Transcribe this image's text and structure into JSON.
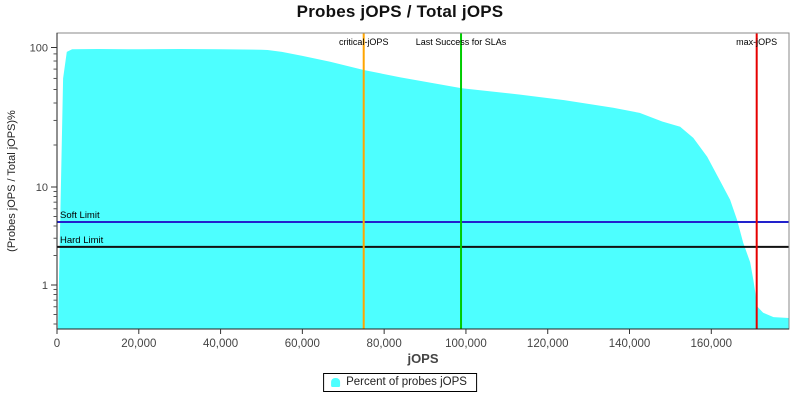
{
  "title": "Probes jOPS / Total jOPS",
  "legend": {
    "label": "Percent of probes jOPS"
  },
  "chart_data": {
    "type": "area",
    "title": "Probes jOPS / Total jOPS",
    "xlabel": "jOPS",
    "ylabel": "(Probes jOPS / Total jOPS)%",
    "grid": false,
    "legend_position": "bottom",
    "x_axis": {
      "min": 0,
      "max": 179000,
      "ticks": [
        0,
        20000,
        40000,
        60000,
        80000,
        100000,
        120000,
        140000,
        160000
      ],
      "tick_labels": [
        "0",
        "20,000",
        "40,000",
        "60,000",
        "80,000",
        "100,000",
        "120,000",
        "140,000",
        "160,000"
      ]
    },
    "y_axis": {
      "scale": "log",
      "min": 0.35,
      "max": 130,
      "major_ticks": [
        100,
        10,
        1
      ],
      "major_tick_labels": [
        "100",
        "10",
        "1"
      ],
      "minor_ticks": [
        90,
        80,
        70,
        60,
        50,
        40,
        30,
        20,
        9,
        8,
        7,
        6,
        5,
        4,
        3,
        2,
        0.9,
        0.8,
        0.7,
        0.6,
        0.5,
        0.4
      ]
    },
    "series": [
      {
        "name": "Percent of probes jOPS",
        "color": "#4DFFFF",
        "points": [
          [
            250,
            0.35
          ],
          [
            900,
            8
          ],
          [
            1500,
            60
          ],
          [
            2400,
            93
          ],
          [
            3700,
            97
          ],
          [
            10000,
            97.5
          ],
          [
            20000,
            97
          ],
          [
            30000,
            97.5
          ],
          [
            40000,
            97
          ],
          [
            50000,
            96.5
          ],
          [
            51500,
            96
          ],
          [
            55000,
            93
          ],
          [
            60000,
            87
          ],
          [
            66800,
            79
          ],
          [
            75000,
            69
          ],
          [
            84000,
            61
          ],
          [
            99000,
            51
          ],
          [
            113000,
            46
          ],
          [
            124000,
            42
          ],
          [
            136000,
            37
          ],
          [
            142500,
            34
          ],
          [
            148000,
            29.5
          ],
          [
            152400,
            27
          ],
          [
            155600,
            22.5
          ],
          [
            159000,
            16.5
          ],
          [
            162200,
            11
          ],
          [
            164600,
            7.4
          ],
          [
            166300,
            4.6
          ],
          [
            167800,
            2.7
          ],
          [
            169500,
            1.7
          ],
          [
            170300,
            1.12
          ],
          [
            171300,
            0.6
          ],
          [
            172700,
            0.52
          ],
          [
            175200,
            0.47
          ],
          [
            179000,
            0.46
          ]
        ]
      }
    ],
    "vertical_markers": [
      {
        "label": "critical-jOPS",
        "color": "#FFA500",
        "x": 75000
      },
      {
        "label": "Last Success for SLAs",
        "color": "#00CC00",
        "x": 98800
      },
      {
        "label": "max-jOPS",
        "color": "#E60000",
        "x": 171100
      }
    ],
    "limit_lines": [
      {
        "label": "Soft Limit",
        "color": "#2222CC",
        "y": 4.4
      },
      {
        "label": "Hard Limit",
        "color": "#111111",
        "y": 2.45
      }
    ]
  }
}
